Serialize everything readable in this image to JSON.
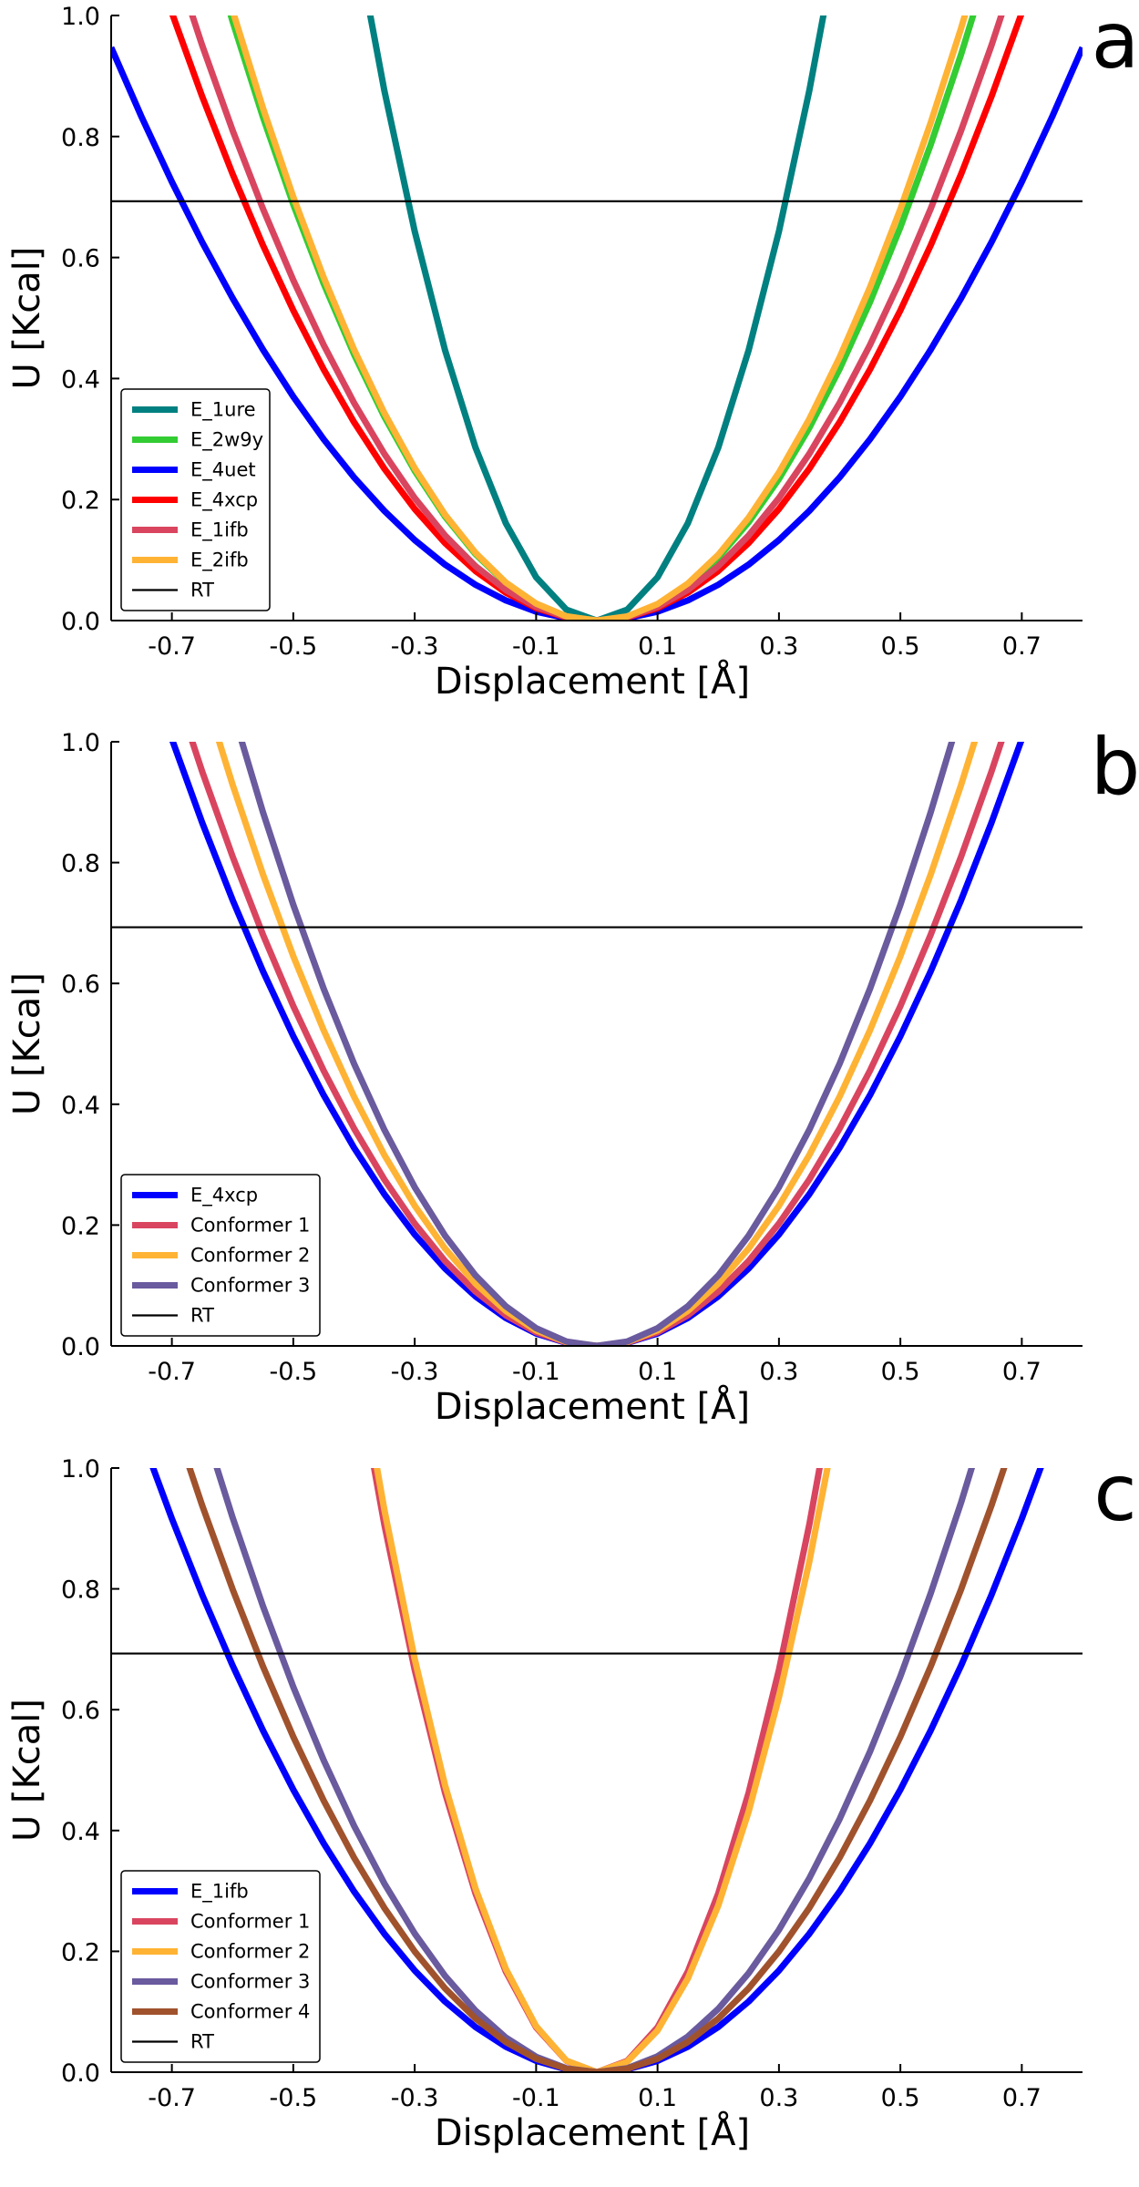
{
  "figure": {
    "panels": [
      "a",
      "b",
      "c"
    ]
  },
  "chart_data": [
    {
      "type": "line",
      "panel_letter": "a",
      "xlabel": "Displacement [Å]",
      "ylabel": "U [Kcal]",
      "xlim": [
        -0.8,
        0.8
      ],
      "ylim": [
        0,
        1.0
      ],
      "xticks": [
        -0.7,
        -0.5,
        -0.3,
        -0.1,
        0.1,
        0.3,
        0.5,
        0.7
      ],
      "xtick_labels": [
        "-0.7",
        "-0.5",
        "-0.3",
        "-0.1",
        "0.1",
        "0.3",
        "0.5",
        "0.7"
      ],
      "yticks": [
        0.0,
        0.2,
        0.4,
        0.6,
        0.8,
        1.0
      ],
      "ytick_labels": [
        "0.0",
        "0.2",
        "0.4",
        "0.6",
        "0.8",
        "1.0"
      ],
      "grid": false,
      "legend_position": "bottom-left",
      "series": [
        {
          "name": "E_1ure",
          "color": "#008080",
          "k_left": 7.15,
          "k_right": 7.15
        },
        {
          "name": "E_2w9y",
          "color": "#33cc33",
          "k_left": 2.75,
          "k_right": 2.6
        },
        {
          "name": "E_4uet",
          "color": "#0000ff",
          "k_left": 1.48,
          "k_right": 1.48
        },
        {
          "name": "E_4xcp",
          "color": "#ff0000",
          "k_left": 2.05,
          "k_right": 2.05
        },
        {
          "name": "E_1ifb",
          "color": "#d9455f",
          "k_left": 2.25,
          "k_right": 2.25
        },
        {
          "name": "E_2ifb",
          "color": "#ffb334",
          "k_left": 2.8,
          "k_right": 2.72
        }
      ],
      "reference_line": {
        "name": "RT",
        "y": 0.693,
        "color": "#000000"
      }
    },
    {
      "type": "line",
      "panel_letter": "b",
      "xlabel": "Displacement [Å]",
      "ylabel": "U [Kcal]",
      "xlim": [
        -0.8,
        0.8
      ],
      "ylim": [
        0,
        1.0
      ],
      "xticks": [
        -0.7,
        -0.5,
        -0.3,
        -0.1,
        0.1,
        0.3,
        0.5,
        0.7
      ],
      "xtick_labels": [
        "-0.7",
        "-0.5",
        "-0.3",
        "-0.1",
        "0.1",
        "0.3",
        "0.5",
        "0.7"
      ],
      "yticks": [
        0.0,
        0.2,
        0.4,
        0.6,
        0.8,
        1.0
      ],
      "ytick_labels": [
        "0.0",
        "0.2",
        "0.4",
        "0.6",
        "0.8",
        "1.0"
      ],
      "grid": false,
      "legend_position": "bottom-left",
      "series": [
        {
          "name": "E_4xcp",
          "color": "#0000ff",
          "k_left": 2.05,
          "k_right": 2.05
        },
        {
          "name": "Conformer 1",
          "color": "#d9455f",
          "k_left": 2.25,
          "k_right": 2.25
        },
        {
          "name": "Conformer 2",
          "color": "#ffb334",
          "k_left": 2.58,
          "k_right": 2.58
        },
        {
          "name": "Conformer 3",
          "color": "#6a5a9e",
          "k_left": 2.92,
          "k_right": 2.92
        }
      ],
      "reference_line": {
        "name": "RT",
        "y": 0.693,
        "color": "#000000"
      }
    },
    {
      "type": "line",
      "panel_letter": "c",
      "xlabel": "Displacement [Å]",
      "ylabel": "U [Kcal]",
      "xlim": [
        -0.8,
        0.8
      ],
      "ylim": [
        0,
        1.0
      ],
      "xticks": [
        -0.7,
        -0.5,
        -0.3,
        -0.1,
        0.1,
        0.3,
        0.5,
        0.7
      ],
      "xtick_labels": [
        "-0.7",
        "-0.5",
        "-0.3",
        "-0.1",
        "0.1",
        "0.3",
        "0.5",
        "0.7"
      ],
      "yticks": [
        0.0,
        0.2,
        0.4,
        0.6,
        0.8,
        1.0
      ],
      "ytick_labels": [
        "0.0",
        "0.2",
        "0.4",
        "0.6",
        "0.8",
        "1.0"
      ],
      "grid": false,
      "legend_position": "bottom-left",
      "series": [
        {
          "name": "E_1ifb",
          "color": "#0000ff",
          "k_left": 1.87,
          "k_right": 1.87
        },
        {
          "name": "Conformer 1",
          "color": "#d9455f",
          "k_left": 7.4,
          "k_right": 7.4
        },
        {
          "name": "Conformer 2",
          "color": "#ffb334",
          "k_left": 7.6,
          "k_right": 6.9
        },
        {
          "name": "Conformer 3",
          "color": "#6a5a9e",
          "k_left": 2.55,
          "k_right": 2.62
        },
        {
          "name": "Conformer 4",
          "color": "#a0522d",
          "k_left": 2.22,
          "k_right": 2.22
        }
      ],
      "reference_line": {
        "name": "RT",
        "y": 0.693,
        "color": "#000000"
      }
    }
  ]
}
